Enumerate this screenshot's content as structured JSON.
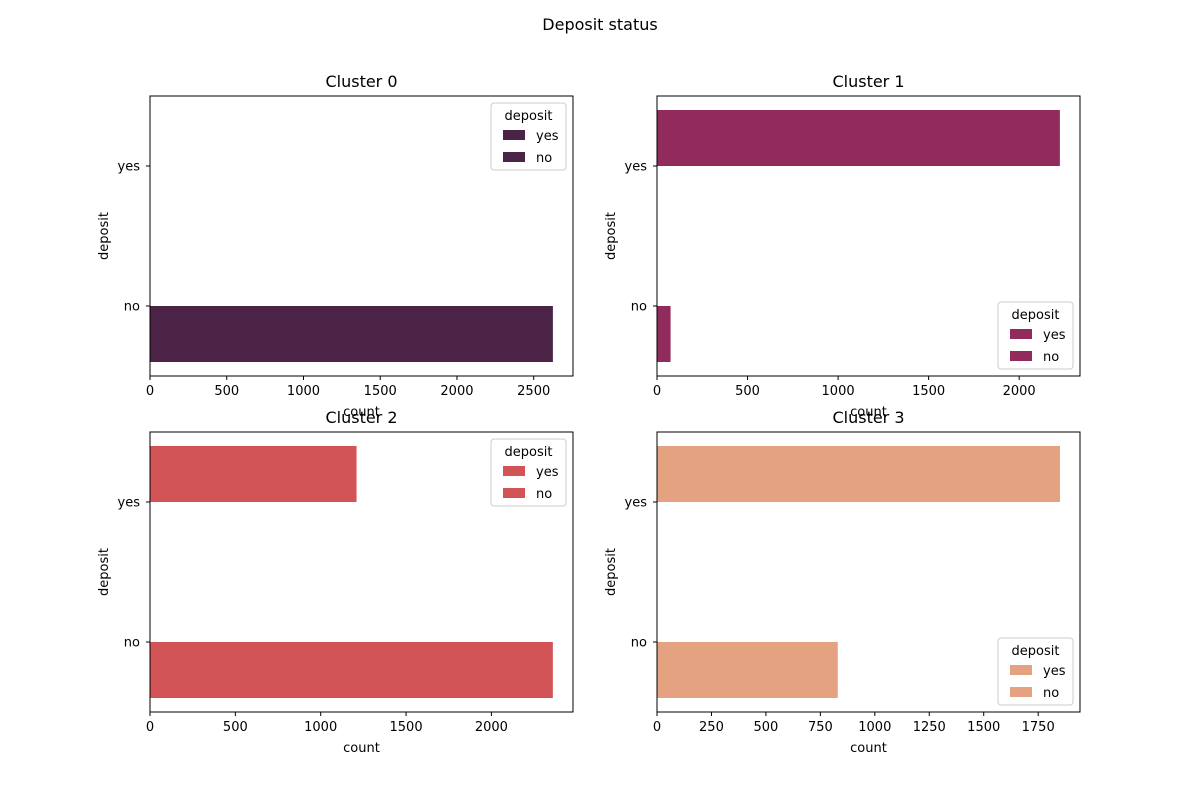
{
  "figure_title": "Deposit status",
  "chart_data": [
    {
      "type": "bar",
      "orientation": "horizontal",
      "title": "Cluster 0",
      "xlabel": "count",
      "ylabel": "deposit",
      "categories": [
        "yes",
        "no"
      ],
      "values": [
        0,
        2625
      ],
      "xlim": [
        0,
        2756
      ],
      "xticks": [
        0,
        500,
        1000,
        1500,
        2000,
        2500
      ],
      "color": "#4a2346",
      "legend": {
        "title": "deposit",
        "entries": [
          "yes",
          "no"
        ],
        "placement": "upper right"
      }
    },
    {
      "type": "bar",
      "orientation": "horizontal",
      "title": "Cluster 1",
      "xlabel": "count",
      "ylabel": "deposit",
      "categories": [
        "yes",
        "no"
      ],
      "values": [
        2225,
        75
      ],
      "xlim": [
        0,
        2336
      ],
      "xticks": [
        0,
        500,
        1000,
        1500,
        2000
      ],
      "color": "#912b5c",
      "legend": {
        "title": "deposit",
        "entries": [
          "yes",
          "no"
        ],
        "placement": "lower right"
      }
    },
    {
      "type": "bar",
      "orientation": "horizontal",
      "title": "Cluster 2",
      "xlabel": "count",
      "ylabel": "deposit",
      "categories": [
        "yes",
        "no"
      ],
      "values": [
        1210,
        2360
      ],
      "xlim": [
        0,
        2478
      ],
      "xticks": [
        0,
        500,
        1000,
        1500,
        2000
      ],
      "color": "#d35457",
      "legend": {
        "title": "deposit",
        "entries": [
          "yes",
          "no"
        ],
        "placement": "upper right"
      }
    },
    {
      "type": "bar",
      "orientation": "horizontal",
      "title": "Cluster 3",
      "xlabel": "count",
      "ylabel": "deposit",
      "categories": [
        "yes",
        "no"
      ],
      "values": [
        1850,
        830
      ],
      "xlim": [
        0,
        1942
      ],
      "xticks": [
        0,
        250,
        500,
        750,
        1000,
        1250,
        1500,
        1750
      ],
      "color": "#e4a281",
      "legend": {
        "title": "deposit",
        "entries": [
          "yes",
          "no"
        ],
        "placement": "lower right"
      }
    }
  ]
}
